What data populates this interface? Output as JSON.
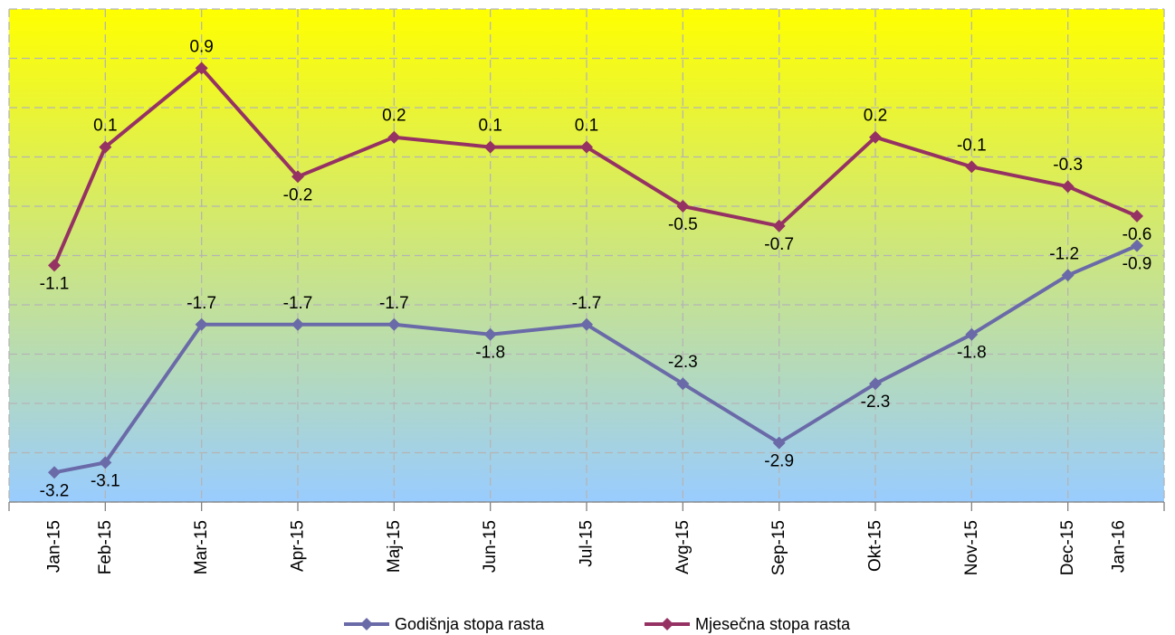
{
  "chart_data": {
    "type": "line",
    "categories": [
      "Jan-15",
      "Feb-15",
      "Mar-15",
      "Apr-15",
      "Maj-15",
      "Jun-15",
      "Jul-15",
      "Avg-15",
      "Sep-15",
      "Okt-15",
      "Nov-15",
      "Dec-15",
      "Jan-16"
    ],
    "series": [
      {
        "name": "Godišnja stopa rasta",
        "color": "#6a6aa8",
        "values": [
          -3.2,
          -3.1,
          -1.7,
          -1.7,
          -1.7,
          -1.8,
          -1.7,
          -2.3,
          -2.9,
          -2.3,
          -1.8,
          -1.2,
          -0.9
        ],
        "labels": [
          "-3.2",
          "-3.1",
          "-1.7",
          "-1.7",
          "-1.7",
          "-1.8",
          "-1.7",
          "-2.3",
          "-2.9",
          "-2.3",
          "-1.8",
          "-1.2",
          "-0.9"
        ]
      },
      {
        "name": "Mjesečna stopa rasta",
        "color": "#953263",
        "values": [
          -1.1,
          0.1,
          0.9,
          -0.2,
          0.2,
          0.1,
          0.1,
          -0.5,
          -0.7,
          0.2,
          -0.1,
          -0.3,
          -0.6
        ],
        "labels": [
          "-1.1",
          "0.1",
          "0.9",
          "-0.2",
          "0.2",
          "0.1",
          "0.1",
          "-0.5",
          "-0.7",
          "0.2",
          "-0.1",
          "-0.3",
          "-0.6"
        ]
      }
    ],
    "ylim": [
      -3.5,
      1.5
    ],
    "grid": true,
    "legend": "bottom-center",
    "background_gradient": [
      "#ffff00",
      "#99ccff"
    ]
  }
}
